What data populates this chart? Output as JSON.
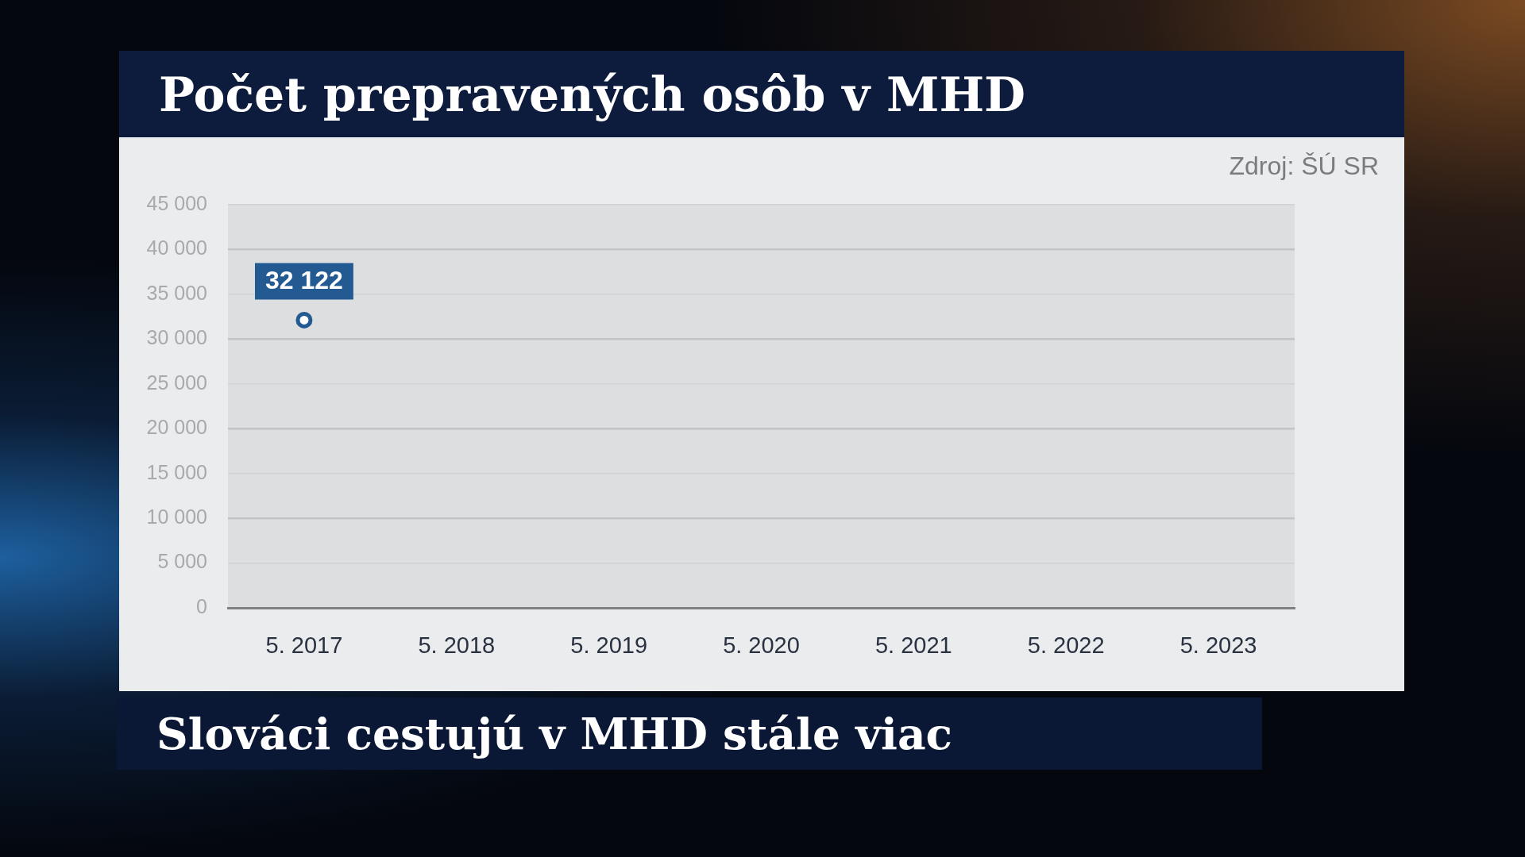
{
  "chart_data": {
    "type": "line",
    "title": "Počet prepravených osôb v MHD",
    "annotations": [
      "Zdroj: ŠÚ SR",
      "Slováci cestujú v MHD stále viac"
    ],
    "categories": [
      "5. 2017",
      "5. 2018",
      "5. 2019",
      "5. 2020",
      "5. 2021",
      "5. 2022",
      "5. 2023"
    ],
    "series": [
      {
        "color": "#235a92",
        "values": [
          32122,
          null,
          null,
          null,
          null,
          null,
          null
        ],
        "value_labels": [
          "32 122",
          null,
          null,
          null,
          null,
          null,
          null
        ]
      }
    ],
    "ylim": [
      0,
      45000
    ],
    "yticks": [
      0,
      {
        "value": 5000,
        "label": "5 000"
      },
      {
        "value": 10000,
        "label": "10 000"
      },
      {
        "value": 15000,
        "label": "15 000"
      },
      {
        "value": 20000,
        "label": "20 000"
      },
      {
        "value": 25000,
        "label": "25 000"
      },
      {
        "value": 30000,
        "label": "30 000"
      },
      {
        "value": 35000,
        "label": "35 000"
      },
      {
        "value": 40000,
        "label": "40 000"
      },
      {
        "value": 45000,
        "label": "45 000"
      }
    ],
    "grid": "y",
    "marker": "circle"
  }
}
